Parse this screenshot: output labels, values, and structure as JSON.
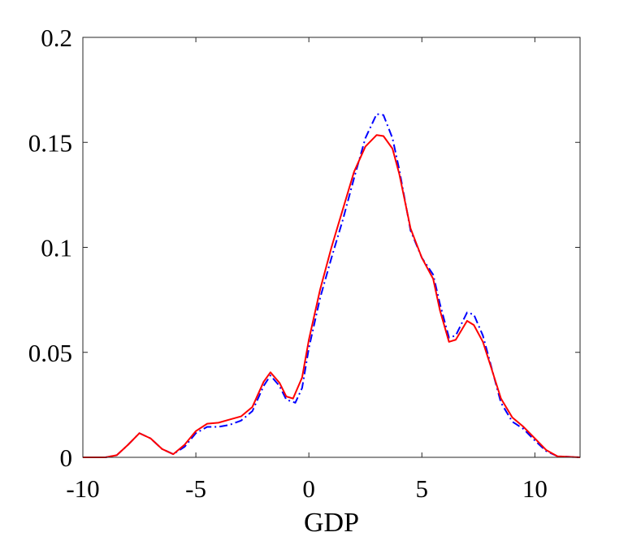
{
  "chart_data": {
    "type": "line",
    "title": "",
    "xlabel": "GDP",
    "ylabel": "",
    "xlim": [
      -10,
      12
    ],
    "ylim": [
      0,
      0.2
    ],
    "x_ticks": [
      -10,
      -5,
      0,
      5,
      10
    ],
    "x_tick_labels": [
      "-10",
      "-5",
      "0",
      "5",
      "10"
    ],
    "y_ticks": [
      0,
      0.05,
      0.1,
      0.15,
      0.2
    ],
    "y_tick_labels": [
      "0",
      "0.05",
      "0.1",
      "0.15",
      "0.2"
    ],
    "grid": false,
    "legend": "none",
    "series": [
      {
        "color": "#0000ff",
        "line_style": "dash-dot",
        "points": [
          [
            -10,
            0
          ],
          [
            -9,
            0
          ],
          [
            -8.5,
            0.001
          ],
          [
            -8,
            0.006
          ],
          [
            -7.5,
            0.0115
          ],
          [
            -7,
            0.009
          ],
          [
            -6.5,
            0.004
          ],
          [
            -6,
            0.0015
          ],
          [
            -5.5,
            0.005
          ],
          [
            -5,
            0.0115
          ],
          [
            -4.5,
            0.0145
          ],
          [
            -4,
            0.0145
          ],
          [
            -3.5,
            0.0155
          ],
          [
            -3,
            0.0175
          ],
          [
            -2.5,
            0.022
          ],
          [
            -2,
            0.034
          ],
          [
            -1.7,
            0.039
          ],
          [
            -1.3,
            0.034
          ],
          [
            -1,
            0.0275
          ],
          [
            -0.6,
            0.026
          ],
          [
            -0.3,
            0.033
          ],
          [
            0,
            0.052
          ],
          [
            0.5,
            0.076
          ],
          [
            1,
            0.095
          ],
          [
            1.5,
            0.113
          ],
          [
            2,
            0.133
          ],
          [
            2.5,
            0.152
          ],
          [
            3,
            0.1635
          ],
          [
            3.3,
            0.163
          ],
          [
            3.7,
            0.152
          ],
          [
            4,
            0.137
          ],
          [
            4.5,
            0.108
          ],
          [
            5,
            0.095
          ],
          [
            5.5,
            0.087
          ],
          [
            5.8,
            0.073
          ],
          [
            6.2,
            0.057
          ],
          [
            6.5,
            0.058
          ],
          [
            7,
            0.069
          ],
          [
            7.3,
            0.068
          ],
          [
            7.7,
            0.058
          ],
          [
            8,
            0.046
          ],
          [
            8.5,
            0.026
          ],
          [
            9,
            0.017
          ],
          [
            9.5,
            0.0135
          ],
          [
            10,
            0.008
          ],
          [
            10.5,
            0.003
          ],
          [
            11,
            0.0005
          ],
          [
            12,
            0
          ]
        ]
      },
      {
        "color": "#ff0000",
        "line_style": "solid",
        "points": [
          [
            -10,
            0
          ],
          [
            -9,
            0
          ],
          [
            -8.5,
            0.001
          ],
          [
            -8,
            0.006
          ],
          [
            -7.5,
            0.0115
          ],
          [
            -7,
            0.009
          ],
          [
            -6.5,
            0.004
          ],
          [
            -6,
            0.0015
          ],
          [
            -5.5,
            0.006
          ],
          [
            -5,
            0.0125
          ],
          [
            -4.5,
            0.016
          ],
          [
            -4,
            0.0165
          ],
          [
            -3.5,
            0.018
          ],
          [
            -3,
            0.0195
          ],
          [
            -2.5,
            0.024
          ],
          [
            -2,
            0.036
          ],
          [
            -1.7,
            0.0405
          ],
          [
            -1.3,
            0.0355
          ],
          [
            -1,
            0.029
          ],
          [
            -0.7,
            0.028
          ],
          [
            -0.3,
            0.038
          ],
          [
            0,
            0.056
          ],
          [
            0.5,
            0.08
          ],
          [
            1,
            0.1
          ],
          [
            1.5,
            0.118
          ],
          [
            2,
            0.136
          ],
          [
            2.5,
            0.148
          ],
          [
            3,
            0.1535
          ],
          [
            3.3,
            0.153
          ],
          [
            3.7,
            0.147
          ],
          [
            4,
            0.135
          ],
          [
            4.5,
            0.109
          ],
          [
            5,
            0.095
          ],
          [
            5.5,
            0.085
          ],
          [
            5.8,
            0.07
          ],
          [
            6.2,
            0.055
          ],
          [
            6.5,
            0.056
          ],
          [
            7,
            0.065
          ],
          [
            7.3,
            0.063
          ],
          [
            7.7,
            0.055
          ],
          [
            8,
            0.045
          ],
          [
            8.5,
            0.028
          ],
          [
            9,
            0.019
          ],
          [
            9.5,
            0.0145
          ],
          [
            10,
            0.009
          ],
          [
            10.5,
            0.0035
          ],
          [
            11,
            0.0005
          ],
          [
            12,
            0
          ]
        ]
      }
    ]
  }
}
